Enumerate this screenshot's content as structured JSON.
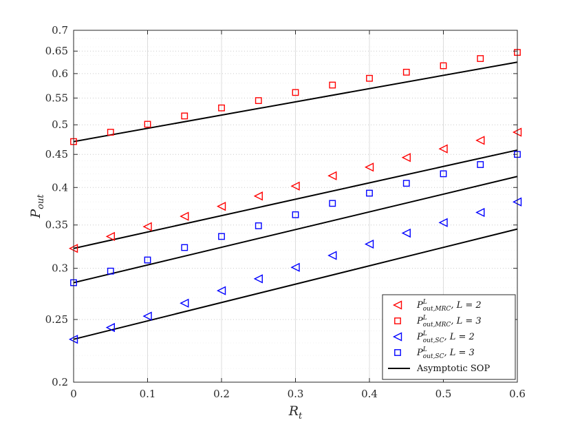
{
  "chart_data": {
    "type": "scatter",
    "title": "",
    "xlabel": "R_t",
    "ylabel": "P_out",
    "xlim": [
      0,
      0.6
    ],
    "ylim": [
      0.2,
      0.7
    ],
    "y_scale": "log",
    "grid": true,
    "legend_position": "bottom-right",
    "x_ticks": [
      0,
      0.1,
      0.2,
      0.3,
      0.4,
      0.5,
      0.6
    ],
    "y_ticks": [
      0.2,
      0.25,
      0.3,
      0.35,
      0.4,
      0.45,
      0.5,
      0.55,
      0.6,
      0.65,
      0.7
    ],
    "x_tick_labels": [
      "0",
      "0.1",
      "0.2",
      "0.3",
      "0.4",
      "0.5",
      "0.6"
    ],
    "y_tick_labels": [
      "0.2",
      "0.25",
      "0.3",
      "0.35",
      "0.4",
      "0.45",
      "0.5",
      "0.55",
      "0.6",
      "0.65",
      "0.7"
    ],
    "x": [
      0,
      0.05,
      0.1,
      0.15,
      0.2,
      0.25,
      0.3,
      0.35,
      0.4,
      0.45,
      0.5,
      0.55,
      0.6
    ],
    "series": [
      {
        "name": "P^L_{out,MRC}, L = 2",
        "color": "#ff0000",
        "marker": "triangle-left",
        "values": [
          0.322,
          0.336,
          0.348,
          0.361,
          0.374,
          0.388,
          0.402,
          0.417,
          0.43,
          0.445,
          0.459,
          0.473,
          0.487
        ]
      },
      {
        "name": "P^L_{out,MRC}, L = 3",
        "color": "#ff0000",
        "marker": "square",
        "values": [
          0.471,
          0.487,
          0.501,
          0.516,
          0.531,
          0.545,
          0.561,
          0.576,
          0.59,
          0.603,
          0.617,
          0.633,
          0.647
        ]
      },
      {
        "name": "P^L_{out,SC}, L = 2",
        "color": "#0000ff",
        "marker": "triangle-left",
        "values": [
          0.233,
          0.243,
          0.253,
          0.265,
          0.277,
          0.289,
          0.301,
          0.314,
          0.327,
          0.34,
          0.353,
          0.366,
          0.38
        ]
      },
      {
        "name": "P^L_{out,SC}, L = 3",
        "color": "#0000ff",
        "marker": "square",
        "values": [
          0.285,
          0.297,
          0.309,
          0.323,
          0.336,
          0.349,
          0.363,
          0.378,
          0.392,
          0.406,
          0.42,
          0.434,
          0.45
        ]
      },
      {
        "name": "Asymptotic SOP",
        "color": "#000000",
        "marker": "line",
        "segments": [
          {
            "x": [
              0,
              0.6
            ],
            "y": [
              0.471,
              0.625
            ]
          },
          {
            "x": [
              0,
              0.6
            ],
            "y": [
              0.322,
              0.457
            ]
          },
          {
            "x": [
              0,
              0.6
            ],
            "y": [
              0.285,
              0.416
            ]
          },
          {
            "x": [
              0,
              0.6
            ],
            "y": [
              0.233,
              0.345
            ]
          }
        ]
      }
    ],
    "legend": {
      "entries": [
        {
          "main": "P",
          "sup": "L",
          "sub": "out,MRC",
          "rest": ", L = 2",
          "marker": "triangle-left",
          "color": "#ff0000"
        },
        {
          "main": "P",
          "sup": "L",
          "sub": "out,MRC",
          "rest": ", L = 3",
          "marker": "square",
          "color": "#ff0000"
        },
        {
          "main": "P",
          "sup": "L",
          "sub": "out,SC",
          "rest": ", L = 2",
          "marker": "triangle-left",
          "color": "#0000ff"
        },
        {
          "main": "P",
          "sup": "L",
          "sub": "out,SC",
          "rest": ", L = 3",
          "marker": "square",
          "color": "#0000ff"
        },
        {
          "main": "",
          "sup": "",
          "sub": "",
          "rest": "Asymptotic SOP",
          "marker": "line",
          "color": "#000000"
        }
      ]
    },
    "axis_labels": {
      "x_main": "R",
      "x_sub": "t",
      "y_main": "P",
      "y_sub": "out"
    }
  }
}
